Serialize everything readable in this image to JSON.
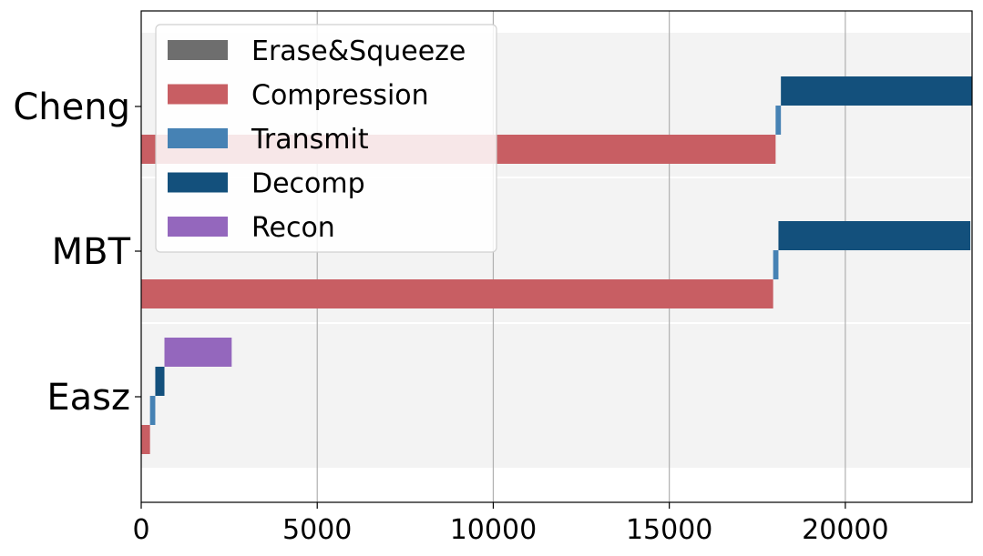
{
  "chart_data": {
    "type": "bar",
    "orientation": "horizontal-stacked-timeline",
    "title": "",
    "xlabel": "",
    "ylabel": "",
    "xlim": [
      0,
      23600
    ],
    "x_ticks": [
      0,
      5000,
      10000,
      15000,
      20000
    ],
    "x_tick_labels": [
      "0",
      "5000",
      "10000",
      "15000",
      "20000"
    ],
    "grid": "x-only",
    "legend_placement": "top-left",
    "categories": [
      "Cheng",
      "MBT",
      "Easz"
    ],
    "series": [
      {
        "name": "Erase&Squeeze",
        "color": "#6e6e6e",
        "segments": [
          null,
          null,
          null
        ]
      },
      {
        "name": "Compression",
        "color": "#c85e63",
        "segments": [
          [
            0,
            18020
          ],
          [
            0,
            17950
          ],
          [
            0,
            250
          ]
        ]
      },
      {
        "name": "Transmit",
        "color": "#4682b4",
        "segments": [
          [
            18020,
            18170
          ],
          [
            17950,
            18100
          ],
          [
            250,
            400
          ]
        ]
      },
      {
        "name": "Decomp",
        "color": "#13507c",
        "segments": [
          [
            18170,
            23600
          ],
          [
            18100,
            23550
          ],
          [
            400,
            660
          ]
        ]
      },
      {
        "name": "Recon",
        "color": "#9467bd",
        "segments": [
          null,
          null,
          [
            660,
            2570
          ]
        ]
      }
    ]
  }
}
